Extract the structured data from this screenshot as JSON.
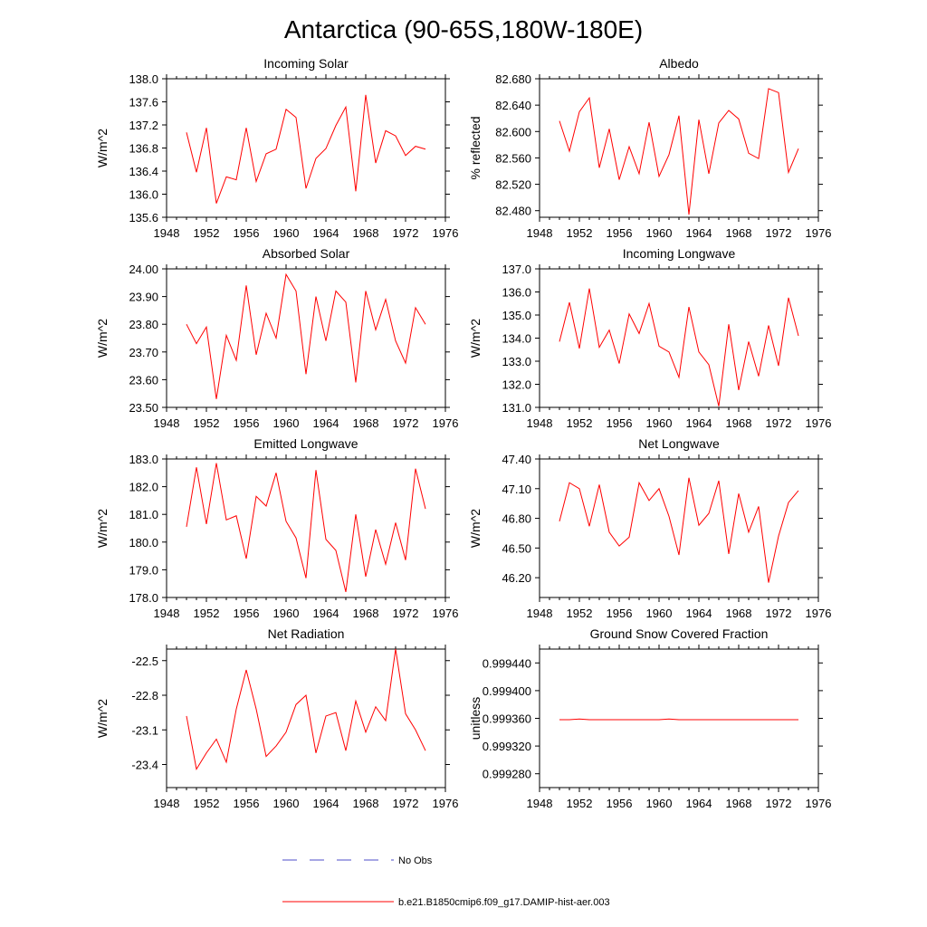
{
  "figure": {
    "title": "Antarctica (90-65S,180W-180E)"
  },
  "legend": {
    "items": [
      {
        "label": "No Obs",
        "color": "#4d4dc8",
        "style": "dashed"
      },
      {
        "label": "b.e21.B1850cmip6.f09_g17.DAMIP-hist-aer.003",
        "color": "#ff0000",
        "style": "solid"
      }
    ]
  },
  "chart_data": [
    {
      "type": "line",
      "title": "Incoming Solar",
      "ylabel": "W/m^2",
      "xlim": [
        1948,
        1976
      ],
      "ylim": [
        135.6,
        138.0
      ],
      "x_ticks": [
        "1948",
        "1952",
        "1956",
        "1960",
        "1964",
        "1968",
        "1972",
        "1976"
      ],
      "y_ticks": [
        "135.6",
        "136.0",
        "136.4",
        "136.8",
        "137.2",
        "137.6",
        "138.0"
      ],
      "x": [
        1950,
        1951,
        1952,
        1953,
        1954,
        1955,
        1956,
        1957,
        1958,
        1959,
        1960,
        1961,
        1962,
        1963,
        1964,
        1965,
        1966,
        1967,
        1968,
        1969,
        1970,
        1971,
        1972,
        1973,
        1974
      ],
      "series": [
        {
          "name": "b.e21.B1850cmip6.f09_g17.DAMIP-hist-aer.003",
          "color": "#ff0000",
          "values": [
            137.07,
            136.38,
            137.15,
            135.84,
            136.3,
            136.25,
            137.15,
            136.22,
            136.7,
            136.78,
            137.47,
            137.33,
            136.1,
            136.62,
            136.79,
            137.19,
            137.51,
            136.05,
            137.72,
            136.54,
            137.1,
            137.01,
            136.67,
            136.83,
            136.78
          ]
        }
      ]
    },
    {
      "type": "line",
      "title": "Albedo",
      "ylabel": "% reflected",
      "xlim": [
        1948,
        1976
      ],
      "ylim": [
        82.47,
        82.68
      ],
      "x_ticks": [
        "1948",
        "1952",
        "1956",
        "1960",
        "1964",
        "1968",
        "1972",
        "1976"
      ],
      "y_ticks": [
        "82.480",
        "82.520",
        "82.560",
        "82.600",
        "82.640",
        "82.680"
      ],
      "x": [
        1950,
        1951,
        1952,
        1953,
        1954,
        1955,
        1956,
        1957,
        1958,
        1959,
        1960,
        1961,
        1962,
        1963,
        1964,
        1965,
        1966,
        1967,
        1968,
        1969,
        1970,
        1971,
        1972,
        1973,
        1974
      ],
      "series": [
        {
          "name": "b.e21.B1850cmip6.f09_g17.DAMIP-hist-aer.003",
          "color": "#ff0000",
          "values": [
            82.616,
            82.57,
            82.63,
            82.651,
            82.545,
            82.604,
            82.527,
            82.577,
            82.536,
            82.614,
            82.532,
            82.565,
            82.624,
            82.474,
            82.618,
            82.536,
            82.613,
            82.632,
            82.619,
            82.567,
            82.559,
            82.665,
            82.659,
            82.538,
            82.574
          ]
        }
      ]
    },
    {
      "type": "line",
      "title": "Absorbed Solar",
      "ylabel": "W/m^2",
      "xlim": [
        1948,
        1976
      ],
      "ylim": [
        23.5,
        24.0
      ],
      "x_ticks": [
        "1948",
        "1952",
        "1956",
        "1960",
        "1964",
        "1968",
        "1972",
        "1976"
      ],
      "y_ticks": [
        "23.50",
        "23.60",
        "23.70",
        "23.80",
        "23.90",
        "24.00"
      ],
      "x": [
        1950,
        1951,
        1952,
        1953,
        1954,
        1955,
        1956,
        1957,
        1958,
        1959,
        1960,
        1961,
        1962,
        1963,
        1964,
        1965,
        1966,
        1967,
        1968,
        1969,
        1970,
        1971,
        1972,
        1973,
        1974
      ],
      "series": [
        {
          "name": "b.e21.B1850cmip6.f09_g17.DAMIP-hist-aer.003",
          "color": "#ff0000",
          "values": [
            23.8,
            23.73,
            23.79,
            23.53,
            23.76,
            23.67,
            23.94,
            23.69,
            23.84,
            23.75,
            23.98,
            23.92,
            23.62,
            23.9,
            23.74,
            23.92,
            23.88,
            23.59,
            23.92,
            23.78,
            23.89,
            23.74,
            23.66,
            23.86,
            23.8
          ]
        }
      ]
    },
    {
      "type": "line",
      "title": "Incoming Longwave",
      "ylabel": "W/m^2",
      "xlim": [
        1948,
        1976
      ],
      "ylim": [
        131.0,
        137.0
      ],
      "x_ticks": [
        "1948",
        "1952",
        "1956",
        "1960",
        "1964",
        "1968",
        "1972",
        "1976"
      ],
      "y_ticks": [
        "131.0",
        "132.0",
        "133.0",
        "134.0",
        "135.0",
        "136.0",
        "137.0"
      ],
      "x": [
        1950,
        1951,
        1952,
        1953,
        1954,
        1955,
        1956,
        1957,
        1958,
        1959,
        1960,
        1961,
        1962,
        1963,
        1964,
        1965,
        1966,
        1967,
        1968,
        1969,
        1970,
        1971,
        1972,
        1973,
        1974
      ],
      "series": [
        {
          "name": "b.e21.B1850cmip6.f09_g17.DAMIP-hist-aer.003",
          "color": "#ff0000",
          "values": [
            133.85,
            135.55,
            133.55,
            136.15,
            133.6,
            134.35,
            132.9,
            135.05,
            134.2,
            135.5,
            133.65,
            133.4,
            132.3,
            135.35,
            133.4,
            132.85,
            131.05,
            134.6,
            131.75,
            133.85,
            132.35,
            134.55,
            132.8,
            135.75,
            134.1
          ]
        }
      ]
    },
    {
      "type": "line",
      "title": "Emitted Longwave",
      "ylabel": "W/m^2",
      "xlim": [
        1948,
        1976
      ],
      "ylim": [
        178.0,
        183.0
      ],
      "x_ticks": [
        "1948",
        "1952",
        "1956",
        "1960",
        "1964",
        "1968",
        "1972",
        "1976"
      ],
      "y_ticks": [
        "178.0",
        "179.0",
        "180.0",
        "181.0",
        "182.0",
        "183.0"
      ],
      "x": [
        1950,
        1951,
        1952,
        1953,
        1954,
        1955,
        1956,
        1957,
        1958,
        1959,
        1960,
        1961,
        1962,
        1963,
        1964,
        1965,
        1966,
        1967,
        1968,
        1969,
        1970,
        1971,
        1972,
        1973,
        1974
      ],
      "series": [
        {
          "name": "b.e21.B1850cmip6.f09_g17.DAMIP-hist-aer.003",
          "color": "#ff0000",
          "values": [
            180.55,
            182.7,
            180.65,
            182.85,
            180.8,
            180.95,
            179.4,
            181.65,
            181.3,
            182.5,
            180.75,
            180.15,
            178.7,
            182.6,
            180.1,
            179.7,
            178.2,
            181.0,
            178.75,
            180.45,
            179.2,
            180.7,
            179.35,
            182.65,
            181.2
          ]
        }
      ]
    },
    {
      "type": "line",
      "title": "Net Longwave",
      "ylabel": "W/m^2",
      "xlim": [
        1948,
        1976
      ],
      "ylim": [
        46.0,
        47.4
      ],
      "x_ticks": [
        "1948",
        "1952",
        "1956",
        "1960",
        "1964",
        "1968",
        "1972",
        "1976"
      ],
      "y_ticks": [
        "46.20",
        "46.50",
        "46.80",
        "47.10",
        "47.40"
      ],
      "x": [
        1950,
        1951,
        1952,
        1953,
        1954,
        1955,
        1956,
        1957,
        1958,
        1959,
        1960,
        1961,
        1962,
        1963,
        1964,
        1965,
        1966,
        1967,
        1968,
        1969,
        1970,
        1971,
        1972,
        1973,
        1974
      ],
      "series": [
        {
          "name": "b.e21.B1850cmip6.f09_g17.DAMIP-hist-aer.003",
          "color": "#ff0000",
          "values": [
            46.77,
            47.16,
            47.1,
            46.72,
            47.14,
            46.66,
            46.52,
            46.61,
            47.16,
            46.98,
            47.1,
            46.82,
            46.43,
            47.21,
            46.73,
            46.85,
            47.18,
            46.44,
            47.05,
            46.66,
            46.92,
            46.15,
            46.62,
            46.96,
            47.08
          ]
        }
      ]
    },
    {
      "type": "line",
      "title": "Net Radiation",
      "ylabel": "W/m^2",
      "xlim": [
        1948,
        1976
      ],
      "ylim": [
        -23.6,
        -22.4
      ],
      "x_ticks": [
        "1948",
        "1952",
        "1956",
        "1960",
        "1964",
        "1968",
        "1972",
        "1976"
      ],
      "y_ticks": [
        "-22.5",
        "-22.8",
        "-23.1",
        "-23.4"
      ],
      "x": [
        1950,
        1951,
        1952,
        1953,
        1954,
        1955,
        1956,
        1957,
        1958,
        1959,
        1960,
        1961,
        1962,
        1963,
        1964,
        1965,
        1966,
        1967,
        1968,
        1969,
        1970,
        1971,
        1972,
        1973,
        1974
      ],
      "series": [
        {
          "name": "b.e21.B1850cmip6.f09_g17.DAMIP-hist-aer.003",
          "color": "#ff0000",
          "values": [
            -22.98,
            -23.44,
            -23.3,
            -23.18,
            -23.38,
            -22.92,
            -22.58,
            -22.92,
            -23.33,
            -23.24,
            -23.12,
            -22.88,
            -22.8,
            -23.3,
            -22.98,
            -22.95,
            -23.28,
            -22.85,
            -23.12,
            -22.9,
            -23.02,
            -22.4,
            -22.96,
            -23.1,
            -23.28
          ]
        }
      ]
    },
    {
      "type": "line",
      "title": "Ground Snow Covered Fraction",
      "ylabel": "unitless",
      "xlim": [
        1948,
        1976
      ],
      "ylim": [
        0.99926,
        0.99946
      ],
      "x_ticks": [
        "1948",
        "1952",
        "1956",
        "1960",
        "1964",
        "1968",
        "1972",
        "1976"
      ],
      "y_ticks": [
        "0.999280",
        "0.999320",
        "0.999360",
        "0.999400",
        "0.999440"
      ],
      "x": [
        1950,
        1951,
        1952,
        1953,
        1954,
        1955,
        1956,
        1957,
        1958,
        1959,
        1960,
        1961,
        1962,
        1963,
        1964,
        1965,
        1966,
        1967,
        1968,
        1969,
        1970,
        1971,
        1972,
        1973,
        1974
      ],
      "series": [
        {
          "name": "b.e21.B1850cmip6.f09_g17.DAMIP-hist-aer.003",
          "color": "#ff0000",
          "values": [
            0.999358,
            0.999358,
            0.999359,
            0.999358,
            0.999358,
            0.999358,
            0.999358,
            0.999358,
            0.999358,
            0.999358,
            0.999358,
            0.999359,
            0.999358,
            0.999358,
            0.999358,
            0.999358,
            0.999358,
            0.999358,
            0.999358,
            0.999358,
            0.999358,
            0.999358,
            0.999358,
            0.999358,
            0.999358
          ]
        }
      ]
    }
  ]
}
